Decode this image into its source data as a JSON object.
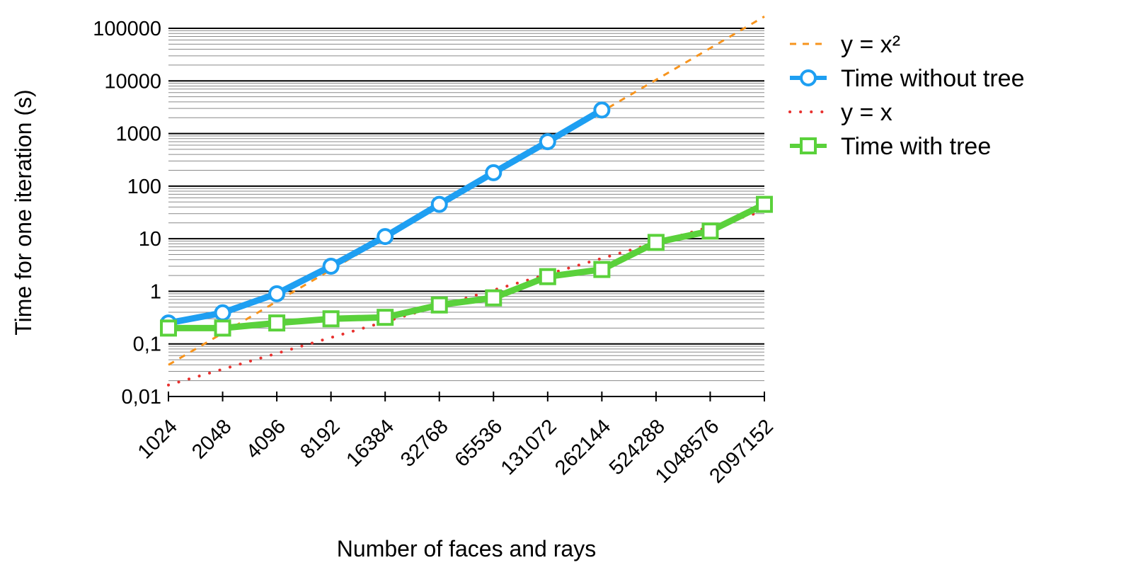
{
  "chart_data": {
    "type": "line",
    "title": "",
    "xlabel": "Number of faces and rays",
    "ylabel": "Time for one iteration (s)",
    "y_scale": "log",
    "ylim": [
      0.01,
      100000
    ],
    "grid": true,
    "legend_position": "right",
    "categories": [
      "1024",
      "2048",
      "4096",
      "8192",
      "16384",
      "32768",
      "65536",
      "131072",
      "262144",
      "524288",
      "1048576",
      "2097152"
    ],
    "y_tick_labels": [
      "0,01",
      "0,1",
      "1",
      "10",
      "100",
      "1000",
      "10000",
      "100000"
    ],
    "series": [
      {
        "name": "y = x²",
        "style": "dashed",
        "color": "#F7941D",
        "values": [
          0.04,
          0.16,
          0.64,
          2.56,
          10.24,
          40.96,
          163.84,
          655.36,
          2621.44,
          10485.76,
          41943.04,
          167772.16
        ]
      },
      {
        "name": "Time without tree",
        "style": "solid",
        "marker": "circle",
        "color": "#1E9FF2",
        "values": [
          0.25,
          0.39,
          0.9,
          3.0,
          11,
          45,
          180,
          700,
          2800,
          null,
          null,
          null
        ]
      },
      {
        "name": "y = x",
        "style": "dotted",
        "color": "#E8312F",
        "values": [
          0.0165,
          0.033,
          0.066,
          0.132,
          0.264,
          0.528,
          1.056,
          2.112,
          4.224,
          8.448,
          16.896,
          33.792
        ]
      },
      {
        "name": "Time with tree",
        "style": "solid",
        "marker": "square",
        "color": "#5AD13B",
        "values": [
          0.2,
          0.2,
          0.25,
          0.3,
          0.32,
          0.55,
          0.75,
          1.9,
          2.6,
          8.5,
          14,
          45
        ]
      }
    ]
  }
}
